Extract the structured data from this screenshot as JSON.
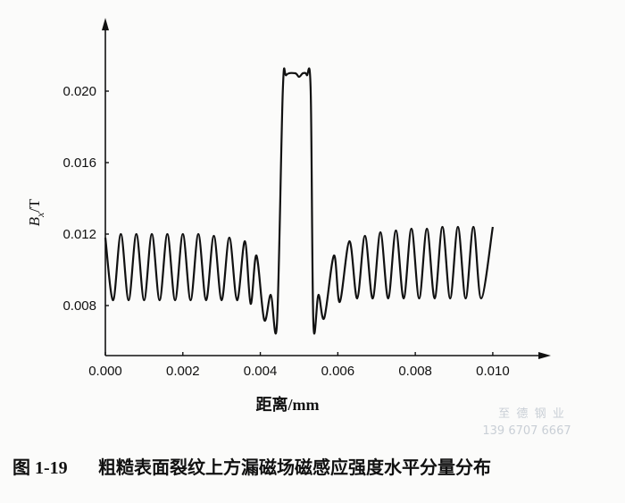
{
  "chart_data": {
    "type": "line",
    "y_label": {
      "symbol": "B",
      "subscript": "x",
      "unit": "/T"
    },
    "x_label": "距离/mm",
    "xlim": [
      0,
      0.0115
    ],
    "ylim": [
      0.0052,
      0.0241
    ],
    "xticks": [
      {
        "value": 0,
        "label": "0.000"
      },
      {
        "value": 0.002,
        "label": "0.002"
      },
      {
        "value": 0.004,
        "label": "0.004"
      },
      {
        "value": 0.006,
        "label": "0.006"
      },
      {
        "value": 0.008,
        "label": "0.008"
      },
      {
        "value": 0.01,
        "label": "0.010"
      }
    ],
    "yticks": [
      {
        "value": 0.008,
        "label": "0.008"
      },
      {
        "value": 0.012,
        "label": "0.012"
      },
      {
        "value": 0.016,
        "label": "0.016"
      },
      {
        "value": 0.02,
        "label": "0.020"
      }
    ],
    "grid": false,
    "series": [
      {
        "color": "#111111",
        "x": [
          0,
          0.0002,
          0.0004,
          0.0006,
          0.0008,
          0.001,
          0.0012,
          0.0014,
          0.0016,
          0.0018,
          0.002,
          0.0022,
          0.0024,
          0.0026,
          0.0028,
          0.003,
          0.0032,
          0.0034,
          0.0036,
          0.00375,
          0.0039,
          0.0041,
          0.00427,
          0.00443,
          0.00458,
          0.00467,
          0.0049,
          0.005,
          0.0051,
          0.0052,
          0.0053,
          0.00537,
          0.0055,
          0.00565,
          0.0059,
          0.00605,
          0.0063,
          0.0065,
          0.0067,
          0.0069,
          0.0071,
          0.0073,
          0.0075,
          0.0077,
          0.0079,
          0.0081,
          0.0083,
          0.0085,
          0.0087,
          0.0089,
          0.0091,
          0.0093,
          0.0095,
          0.0097,
          0.01
        ],
        "values": [
          0.0118,
          0.0083,
          0.012,
          0.0083,
          0.012,
          0.0083,
          0.012,
          0.0083,
          0.012,
          0.0083,
          0.012,
          0.0083,
          0.012,
          0.0083,
          0.0119,
          0.0083,
          0.0118,
          0.0083,
          0.0116,
          0.0081,
          0.0108,
          0.0072,
          0.0086,
          0.007,
          0.02,
          0.0209,
          0.021,
          0.0208,
          0.021,
          0.0209,
          0.02,
          0.007,
          0.0086,
          0.0073,
          0.0108,
          0.0082,
          0.0116,
          0.0084,
          0.0119,
          0.0084,
          0.0121,
          0.0084,
          0.0122,
          0.0084,
          0.0123,
          0.0084,
          0.0123,
          0.0084,
          0.0124,
          0.0084,
          0.0124,
          0.0084,
          0.0124,
          0.0084,
          0.0124
        ]
      }
    ]
  },
  "watermark": {
    "name": "至 德 钢 业",
    "phone": "139 6707 6667"
  },
  "caption": {
    "number": "图 1-19",
    "text": "粗糙表面裂纹上方漏磁场磁感应强度水平分量分布"
  }
}
